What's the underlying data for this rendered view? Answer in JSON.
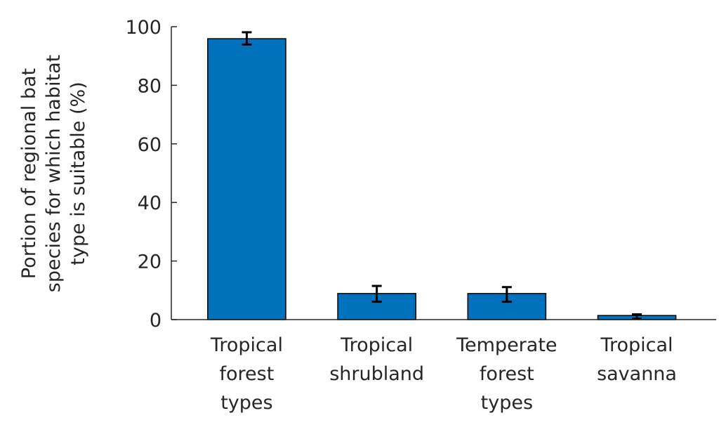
{
  "chart_data": {
    "type": "bar",
    "title": "",
    "xlabel": "",
    "ylabel": [
      "Portion of regional bat",
      "species for which habitat",
      "type is suitable (%)"
    ],
    "categories": [
      [
        "Tropical",
        "forest",
        "types"
      ],
      [
        "Tropical",
        "shrubland"
      ],
      [
        "Temperate",
        "forest",
        "types"
      ],
      [
        "Tropical",
        "savanna"
      ]
    ],
    "values": [
      95.9,
      8.9,
      8.9,
      1.4
    ],
    "error_low": [
      93.9,
      6.1,
      6.1,
      0.3
    ],
    "error_high": [
      98.1,
      11.5,
      11.1,
      1.8
    ],
    "ylim": [
      0,
      100
    ],
    "yticks": [
      "0",
      "20",
      "40",
      "60",
      "80",
      "100"
    ],
    "grid": false,
    "bar_color": "#0072BD"
  }
}
